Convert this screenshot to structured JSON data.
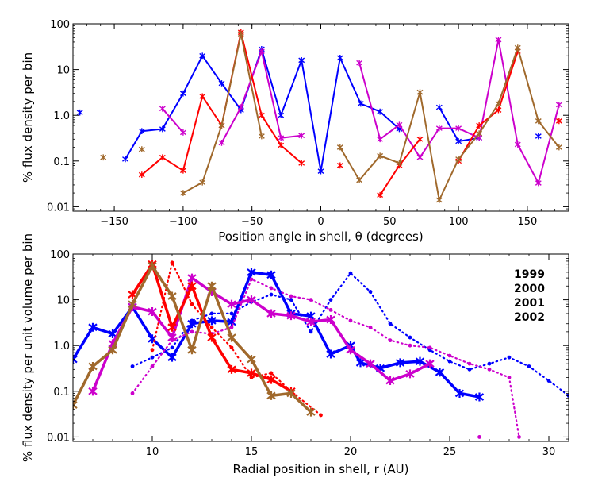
{
  "chart_data": [
    {
      "type": "line",
      "yscale": "log",
      "title": "",
      "xlabel": "Position angle in shell, θ (degrees)",
      "ylabel": "% flux density per bin",
      "xlim": [
        -180,
        180
      ],
      "ylim": [
        0.008,
        100
      ],
      "xticks": [
        -150,
        -100,
        -50,
        0,
        50,
        100,
        150
      ],
      "xtick_labels": [
        "−150",
        "−100",
        "−50",
        "0",
        "50",
        "100",
        "150"
      ],
      "yticks": [
        0.01,
        0.1,
        1,
        10,
        100
      ],
      "ytick_labels": [
        "0.01",
        "0.1",
        "1.0",
        "10",
        "100"
      ],
      "series": [
        {
          "name": "1999",
          "color": "#0000ff",
          "segments": [
            [
              [
                -175,
                1.15
              ]
            ],
            [
              [
                -142,
                0.11
              ],
              [
                -130,
                0.45
              ],
              [
                -115,
                0.5
              ],
              [
                -100,
                3.0
              ],
              [
                -86,
                20
              ],
              [
                -72,
                5.0
              ],
              [
                -58,
                1.3
              ],
              [
                -43,
                28
              ],
              [
                -29,
                1.0
              ],
              [
                -14,
                16
              ],
              [
                0,
                0.06
              ],
              [
                14,
                18
              ],
              [
                29,
                1.8
              ],
              [
                43,
                1.2
              ],
              [
                57,
                0.5
              ]
            ],
            [
              [
                86,
                1.5
              ],
              [
                100,
                0.27
              ],
              [
                115,
                0.32
              ]
            ],
            [
              [
                158,
                0.35
              ]
            ]
          ]
        },
        {
          "name": "2000",
          "color": "#cc00cc",
          "segments": [
            [
              [
                -115,
                1.4
              ],
              [
                -100,
                0.42
              ]
            ],
            [
              [
                -72,
                0.25
              ],
              [
                -58,
                1.5
              ],
              [
                -43,
                25
              ],
              [
                -29,
                0.32
              ],
              [
                -14,
                0.36
              ]
            ],
            [
              [
                28,
                14
              ],
              [
                43,
                0.3
              ],
              [
                57,
                0.62
              ],
              [
                72,
                0.12
              ],
              [
                86,
                0.52
              ],
              [
                100,
                0.52
              ],
              [
                115,
                0.32
              ],
              [
                129,
                45
              ],
              [
                143,
                0.23
              ],
              [
                158,
                0.033
              ],
              [
                173,
                1.7
              ]
            ]
          ]
        },
        {
          "name": "2001",
          "color": "#ff0000",
          "segments": [
            [
              [
                -130,
                0.05
              ],
              [
                -115,
                0.12
              ],
              [
                -100,
                0.062
              ],
              [
                -86,
                2.6
              ],
              [
                -72,
                0.6
              ],
              [
                -58,
                65
              ],
              [
                -43,
                1.0
              ],
              [
                -29,
                0.22
              ],
              [
                -14,
                0.09
              ]
            ],
            [
              [
                14,
                0.08
              ]
            ],
            [
              [
                43,
                0.018
              ],
              [
                57,
                0.08
              ],
              [
                72,
                0.3
              ]
            ],
            [
              [
                100,
                0.1
              ],
              [
                115,
                0.6
              ],
              [
                129,
                1.3
              ],
              [
                143,
                25
              ]
            ],
            [
              [
                173,
                0.75
              ]
            ]
          ]
        },
        {
          "name": "2002",
          "color": "#a0692c",
          "segments": [
            [
              [
                -158,
                0.12
              ]
            ],
            [
              [
                -130,
                0.18
              ]
            ],
            [
              [
                -100,
                0.02
              ],
              [
                -86,
                0.034
              ],
              [
                -72,
                0.6
              ],
              [
                -58,
                60
              ],
              [
                -43,
                0.35
              ]
            ],
            [
              [
                14,
                0.2
              ],
              [
                28,
                0.038
              ],
              [
                43,
                0.13
              ],
              [
                57,
                0.09
              ],
              [
                72,
                3.2
              ],
              [
                86,
                0.014
              ],
              [
                100,
                0.11
              ],
              [
                115,
                0.4
              ],
              [
                129,
                1.8
              ],
              [
                143,
                30
              ],
              [
                158,
                0.75
              ],
              [
                173,
                0.2
              ]
            ]
          ]
        }
      ]
    },
    {
      "type": "line",
      "yscale": "log",
      "title": "",
      "xlabel": "Radial position in shell, r (AU)",
      "ylabel": "% flux density per unit volume per bin",
      "xlim": [
        6,
        31
      ],
      "ylim": [
        0.008,
        100
      ],
      "xticks": [
        10,
        15,
        20,
        25,
        30
      ],
      "xtick_labels": [
        "10",
        "15",
        "20",
        "25",
        "30"
      ],
      "yticks": [
        0.01,
        0.1,
        1,
        10,
        100
      ],
      "ytick_labels": [
        "0.01",
        "0.1",
        "1.0",
        "10",
        "100"
      ],
      "legend": [
        "1999",
        "2000",
        "2001",
        "2002"
      ],
      "legend_position": "top-right",
      "series": [
        {
          "name": "1999",
          "style": "solid",
          "color": "#0000ff",
          "points": [
            [
              6,
              0.5
            ],
            [
              7,
              2.5
            ],
            [
              8,
              1.8
            ],
            [
              9,
              7
            ],
            [
              10,
              1.4
            ],
            [
              11,
              0.55
            ],
            [
              12,
              3.0
            ],
            [
              13,
              3.5
            ],
            [
              14,
              3.3
            ],
            [
              15,
              40
            ],
            [
              16,
              35
            ],
            [
              17,
              5.0
            ],
            [
              18,
              4.4
            ],
            [
              19,
              0.65
            ],
            [
              20,
              1.0
            ],
            [
              20.5,
              0.42
            ],
            [
              21.5,
              0.32
            ],
            [
              22.5,
              0.42
            ],
            [
              23.5,
              0.45
            ],
            [
              24.5,
              0.26
            ],
            [
              25.5,
              0.09
            ],
            [
              26.5,
              0.075
            ]
          ]
        },
        {
          "name": "1999",
          "style": "dotted",
          "color": "#0000ff",
          "points": [
            [
              9,
              0.35
            ],
            [
              10,
              0.55
            ],
            [
              11,
              0.9
            ],
            [
              12,
              3.5
            ],
            [
              13,
              5.0
            ],
            [
              14,
              5.0
            ],
            [
              15,
              9.0
            ],
            [
              16,
              13.0
            ],
            [
              17,
              10.0
            ],
            [
              18,
              2.0
            ],
            [
              19,
              10.0
            ],
            [
              20,
              38.0
            ],
            [
              21,
              15.0
            ],
            [
              22,
              3.0
            ],
            [
              23,
              1.5
            ],
            [
              24,
              0.8
            ],
            [
              25,
              0.45
            ],
            [
              26,
              0.3
            ],
            [
              27,
              0.4
            ],
            [
              28,
              0.55
            ],
            [
              29,
              0.35
            ],
            [
              30,
              0.17
            ],
            [
              31,
              0.08
            ]
          ]
        },
        {
          "name": "2000",
          "style": "solid",
          "color": "#cc00cc",
          "points": [
            [
              7,
              0.1
            ],
            [
              8,
              1.1
            ],
            [
              9,
              7.0
            ],
            [
              10,
              5.5
            ],
            [
              11,
              1.5
            ],
            [
              12,
              30.0
            ],
            [
              13,
              15.0
            ],
            [
              14,
              8.0
            ],
            [
              15,
              10.0
            ],
            [
              16,
              5.0
            ],
            [
              17,
              4.5
            ],
            [
              18,
              3.3
            ],
            [
              19,
              3.7
            ],
            [
              20,
              0.8
            ],
            [
              21,
              0.4
            ],
            [
              22,
              0.17
            ],
            [
              23,
              0.24
            ],
            [
              24,
              0.4
            ]
          ]
        },
        {
          "name": "2000",
          "style": "dotted",
          "color": "#cc00cc",
          "points": [
            [
              9,
              0.09
            ],
            [
              10,
              0.35
            ],
            [
              11,
              1.3
            ],
            [
              12,
              2.0
            ],
            [
              13,
              1.8
            ],
            [
              14,
              2.5
            ],
            [
              15,
              28.0
            ],
            [
              16,
              18.0
            ],
            [
              17,
              12.0
            ],
            [
              18,
              10.0
            ],
            [
              19,
              6.0
            ],
            [
              20,
              3.5
            ],
            [
              21,
              2.5
            ],
            [
              22,
              1.3
            ],
            [
              23,
              1.0
            ],
            [
              24,
              0.9
            ],
            [
              25,
              0.6
            ],
            [
              26,
              0.4
            ],
            [
              27,
              0.3
            ],
            [
              28,
              0.2
            ],
            [
              28.5,
              0.01
            ]
          ]
        },
        {
          "name": "2000",
          "style": "dotted",
          "color": "#cc00cc",
          "points": [
            [
              26.5,
              0.01
            ]
          ]
        },
        {
          "name": "2001",
          "style": "solid",
          "color": "#ff0000",
          "points": [
            [
              9,
              13.0
            ],
            [
              10,
              60.0
            ],
            [
              11,
              2.5
            ],
            [
              12,
              20.0
            ],
            [
              13,
              1.5
            ],
            [
              14,
              0.3
            ],
            [
              15,
              0.25
            ],
            [
              16,
              0.18
            ],
            [
              17,
              0.1
            ]
          ]
        },
        {
          "name": "2001",
          "style": "dotted",
          "color": "#ff0000",
          "points": [
            [
              10,
              0.8
            ],
            [
              11,
              65.0
            ],
            [
              12,
              8.0
            ],
            [
              13,
              2.5
            ],
            [
              14,
              0.9
            ],
            [
              15,
              0.2
            ],
            [
              16,
              0.25
            ],
            [
              17,
              0.1
            ],
            [
              18.5,
              0.03
            ]
          ]
        },
        {
          "name": "2002",
          "style": "solid",
          "color": "#a0692c",
          "points": [
            [
              6,
              0.05
            ],
            [
              7,
              0.35
            ],
            [
              8,
              0.8
            ],
            [
              9,
              8.0
            ],
            [
              10,
              55.0
            ],
            [
              11,
              12.0
            ],
            [
              12,
              0.8
            ],
            [
              13,
              20.0
            ],
            [
              14,
              1.5
            ],
            [
              15,
              0.5
            ],
            [
              16,
              0.08
            ],
            [
              17,
              0.09
            ],
            [
              18,
              0.035
            ]
          ]
        }
      ]
    }
  ]
}
